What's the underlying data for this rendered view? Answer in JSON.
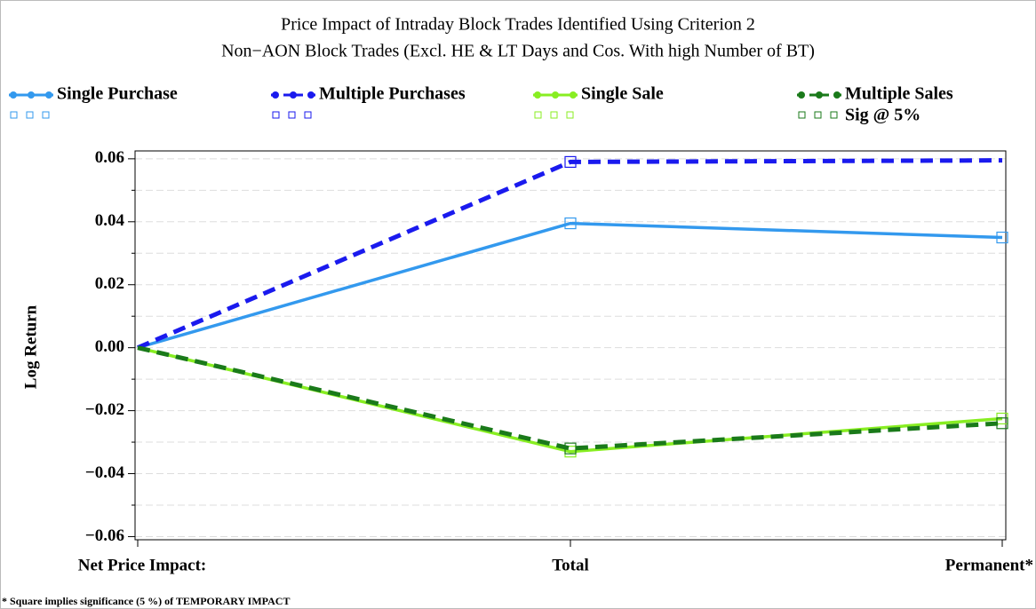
{
  "chart_data": {
    "type": "line",
    "title": "Price Impact of Intraday Block Trades Identified Using Criterion 2",
    "subtitle": "Non−AON Block Trades (Excl. HE & LT Days and Cos. With high Number of BT)",
    "y_label": "Log Return",
    "categories": [
      "Net Price Impact:",
      "Total",
      "Permanent*"
    ],
    "series": [
      {
        "name": "Single Purchase",
        "color": "#3399ee",
        "dashed": false,
        "values": [
          0,
          0.0395,
          0.035
        ],
        "significant": [
          false,
          true,
          true
        ]
      },
      {
        "name": "Multiple Purchases",
        "color": "#1a1aee",
        "dashed": true,
        "values": [
          0,
          0.059,
          0.0595
        ],
        "significant": [
          false,
          true,
          false
        ]
      },
      {
        "name": "Single Sale",
        "color": "#88ee22",
        "dashed": false,
        "values": [
          0,
          -0.033,
          -0.0225
        ],
        "significant": [
          false,
          true,
          true
        ]
      },
      {
        "name": "Multiple Sales",
        "color": "#1a7a1a",
        "dashed": true,
        "values": [
          0,
          -0.032,
          -0.024
        ],
        "significant": [
          false,
          true,
          true
        ]
      }
    ],
    "significance_label": "Sig @ 5%",
    "ylim": [
      -0.061,
      0.0625
    ],
    "yticks": [
      0.06,
      0.04,
      0.02,
      {
        "value": 0,
        "label": "0.00"
      },
      {
        "value": -0.02,
        "label": "−0.02"
      },
      {
        "value": -0.04,
        "label": "−0.04"
      },
      {
        "value": -0.06,
        "label": "−0.06"
      }
    ],
    "minor_yticks": [
      0.05,
      0.03,
      0.01,
      -0.01,
      -0.03,
      -0.05
    ],
    "grid": true,
    "footnote": "* Square implies significance (5 %) of TEMPORARY IMPACT"
  }
}
